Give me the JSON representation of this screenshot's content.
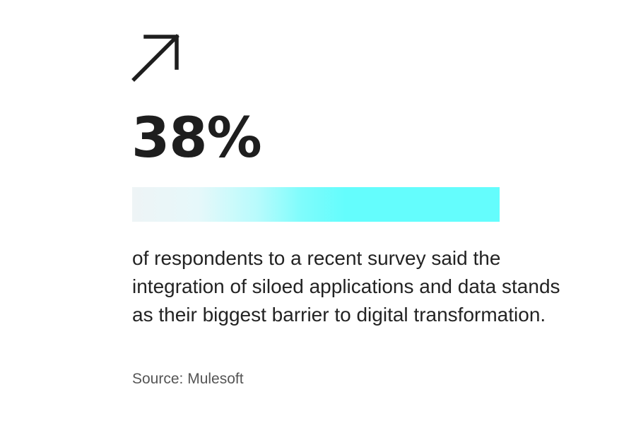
{
  "icon": {
    "name": "arrow-up-right-icon"
  },
  "stat": {
    "value": "38%"
  },
  "bar": {
    "gradient_start_color": "#eef4f6",
    "gradient_end_color": "#64fdfd"
  },
  "description": "of respondents to a recent survey said the integration of siloed applications and data stands as their biggest barrier to digital transformation.",
  "source": "Source: Mulesoft"
}
